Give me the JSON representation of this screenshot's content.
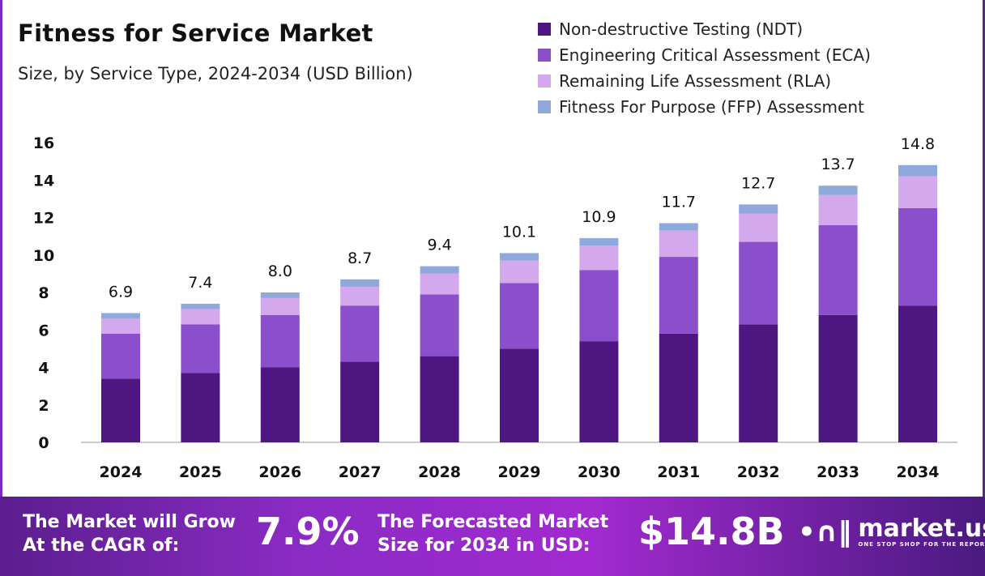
{
  "chart_data": {
    "type": "bar",
    "stacked": true,
    "title": "Fitness for Service Market",
    "subtitle": "Size, by Service Type, 2024-2034 (USD Billion)",
    "categories": [
      "2024",
      "2025",
      "2026",
      "2027",
      "2028",
      "2029",
      "2030",
      "2031",
      "2032",
      "2033",
      "2034"
    ],
    "series": [
      {
        "name": "Non-destructive Testing (NDT)",
        "color": "#4e1681",
        "values": [
          3.4,
          3.7,
          4.0,
          4.3,
          4.6,
          5.0,
          5.4,
          5.8,
          6.3,
          6.8,
          7.3
        ]
      },
      {
        "name": "Engineering Critical Assessment (ECA)",
        "color": "#8b4fcc",
        "values": [
          2.4,
          2.6,
          2.8,
          3.0,
          3.3,
          3.5,
          3.8,
          4.1,
          4.4,
          4.8,
          5.2
        ]
      },
      {
        "name": "Remaining Life Assessment (RLA)",
        "color": "#d4a8ec",
        "values": [
          0.8,
          0.8,
          0.9,
          1.0,
          1.1,
          1.2,
          1.3,
          1.4,
          1.5,
          1.6,
          1.7
        ]
      },
      {
        "name": "Fitness For Purpose (FFP) Assessment",
        "color": "#8fa9dd",
        "values": [
          0.3,
          0.3,
          0.3,
          0.4,
          0.4,
          0.4,
          0.4,
          0.4,
          0.5,
          0.5,
          0.6
        ]
      }
    ],
    "totals": [
      "6.9",
      "7.4",
      "8.0",
      "8.7",
      "9.4",
      "10.1",
      "10.9",
      "11.7",
      "12.7",
      "13.7",
      "14.8"
    ],
    "yticks": [
      "0",
      "2",
      "4",
      "6",
      "8",
      "10",
      "12",
      "14",
      "16"
    ],
    "ylim": [
      0,
      16
    ],
    "grid": false,
    "legend": "top-right"
  },
  "footer": {
    "cagr_label_1": "The Market will Grow",
    "cagr_label_2": "At the CAGR of:",
    "cagr_value": "7.9%",
    "forecast_label_1": "The Forecasted Market",
    "forecast_label_2": "Size for 2034 in USD:",
    "forecast_value": "$14.8B",
    "logo_name": "market.us",
    "logo_tagline": "ONE STOP SHOP FOR THE REPORTS"
  }
}
